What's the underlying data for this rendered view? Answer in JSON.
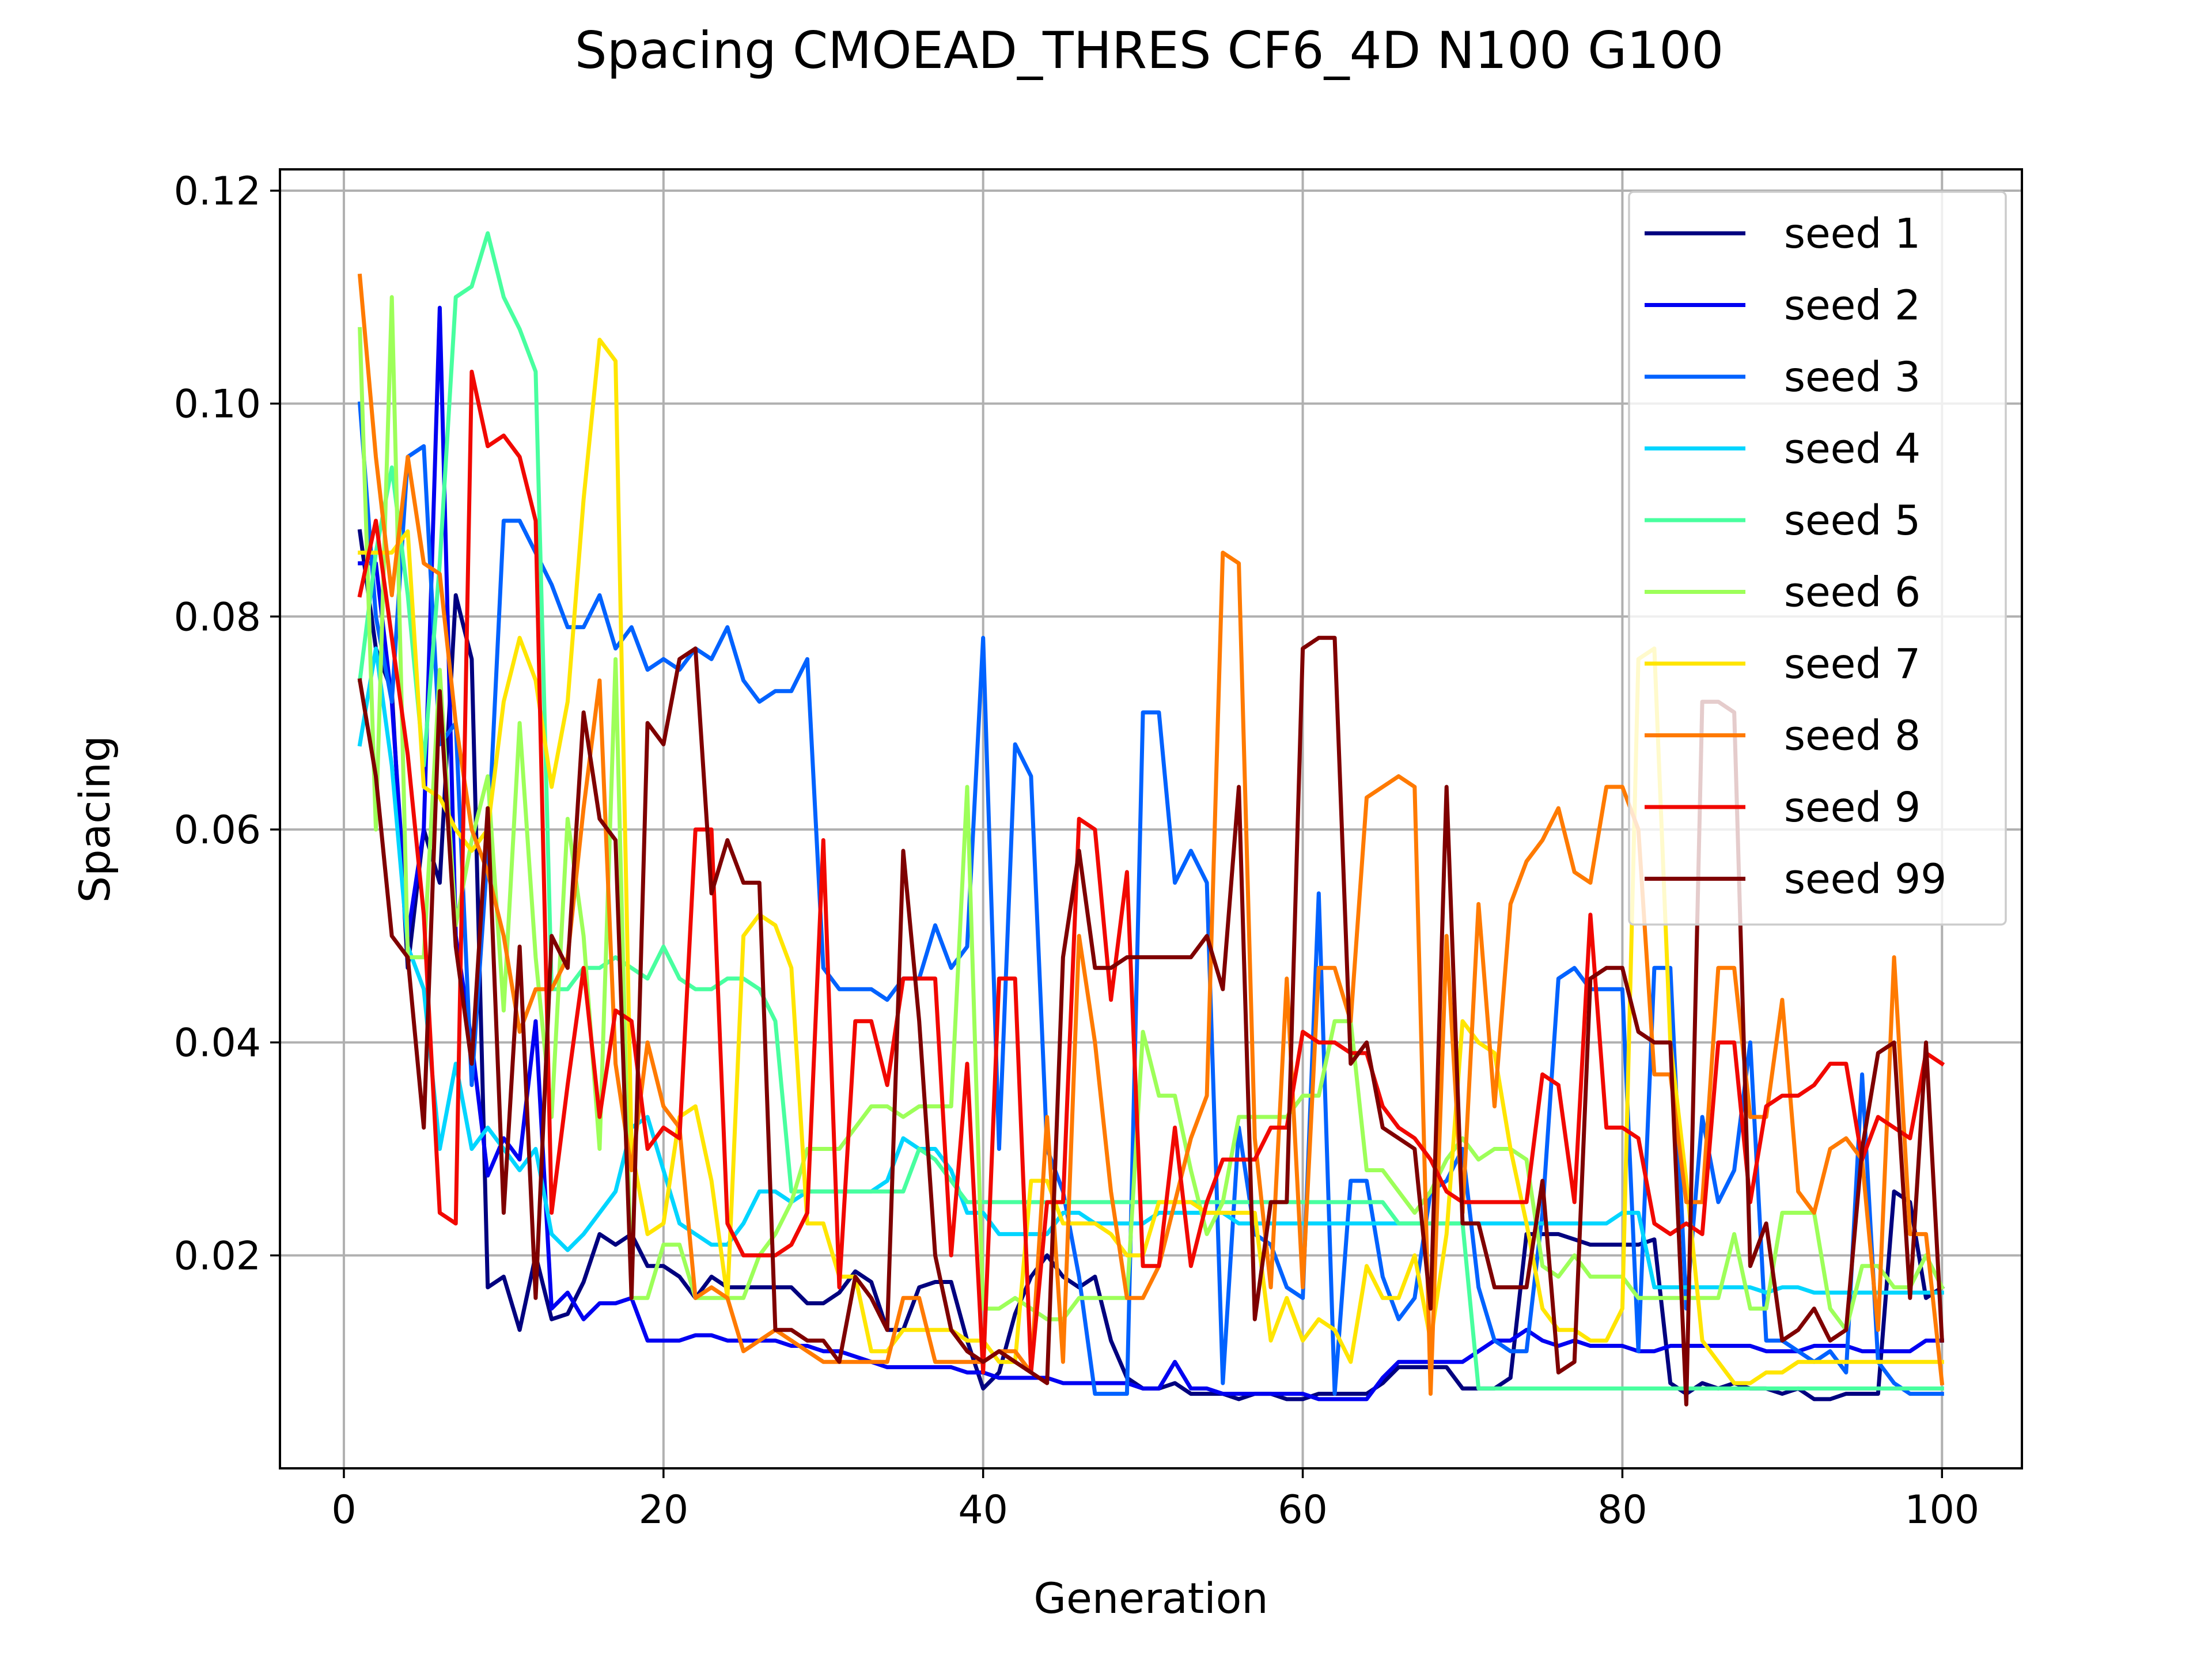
{
  "chart_data": {
    "type": "line",
    "title": "Spacing CMOEAD_THRES CF6_4D N100 G100",
    "xlabel": "Generation",
    "ylabel": "Spacing",
    "xlim": [
      -4,
      105
    ],
    "ylim": [
      0,
      0.122
    ],
    "xticks": [
      0,
      20,
      40,
      60,
      80,
      100
    ],
    "xtick_labels": [
      "0",
      "20",
      "40",
      "60",
      "80",
      "100"
    ],
    "yticks": [
      0.02,
      0.04,
      0.06,
      0.08,
      0.1,
      0.12
    ],
    "ytick_labels": [
      "0.02",
      "0.04",
      "0.06",
      "0.08",
      "0.10",
      "0.12"
    ],
    "grid": true,
    "legend_position": "top-right",
    "x": [
      1,
      2,
      3,
      4,
      5,
      6,
      7,
      8,
      9,
      10,
      11,
      12,
      13,
      14,
      15,
      16,
      17,
      18,
      19,
      20,
      21,
      22,
      23,
      24,
      25,
      26,
      27,
      28,
      29,
      30,
      31,
      32,
      33,
      34,
      35,
      36,
      37,
      38,
      39,
      40,
      41,
      42,
      43,
      44,
      45,
      46,
      47,
      48,
      49,
      50,
      51,
      52,
      53,
      54,
      55,
      56,
      57,
      58,
      59,
      60,
      61,
      62,
      63,
      64,
      65,
      66,
      67,
      68,
      69,
      70,
      71,
      72,
      73,
      74,
      75,
      76,
      77,
      78,
      79,
      80,
      81,
      82,
      83,
      84,
      85,
      86,
      87,
      88,
      89,
      90,
      91,
      92,
      93,
      94,
      95,
      96,
      97,
      98,
      99,
      100
    ],
    "series": [
      {
        "name": "seed 1",
        "color": "#00007f",
        "values": [
          0.088,
          0.077,
          0.073,
          0.047,
          0.06,
          0.055,
          0.082,
          0.076,
          0.017,
          0.018,
          0.013,
          0.02,
          0.014,
          0.0145,
          0.0175,
          0.022,
          0.021,
          0.022,
          0.019,
          0.019,
          0.018,
          0.016,
          0.018,
          0.017,
          0.017,
          0.017,
          0.017,
          0.017,
          0.0155,
          0.0155,
          0.0165,
          0.0185,
          0.0175,
          0.013,
          0.013,
          0.017,
          0.0175,
          0.0175,
          0.012,
          0.0075,
          0.009,
          0.0145,
          0.018,
          0.02,
          0.018,
          0.017,
          0.018,
          0.012,
          0.0085,
          0.0075,
          0.0075,
          0.008,
          0.007,
          0.007,
          0.007,
          0.0065,
          0.007,
          0.007,
          0.0065,
          0.0065,
          0.007,
          0.007,
          0.007,
          0.007,
          0.008,
          0.0095,
          0.0095,
          0.0095,
          0.0095,
          0.0075,
          0.0075,
          0.0075,
          0.0085,
          0.022,
          0.022,
          0.022,
          0.0215,
          0.021,
          0.021,
          0.021,
          0.021,
          0.0215,
          0.008,
          0.007,
          0.008,
          0.0075,
          0.008,
          0.0075,
          0.0075,
          0.007,
          0.0075,
          0.0065,
          0.0065,
          0.007,
          0.007,
          0.007,
          0.026,
          0.025,
          0.016,
          0.017
        ]
      },
      {
        "name": "seed 2",
        "color": "#0000f1",
        "values": [
          0.085,
          0.085,
          0.072,
          0.05,
          0.06,
          0.109,
          0.05,
          0.04,
          0.0275,
          0.031,
          0.029,
          0.042,
          0.015,
          0.0165,
          0.014,
          0.0155,
          0.0155,
          0.016,
          0.012,
          0.012,
          0.012,
          0.0125,
          0.0125,
          0.012,
          0.012,
          0.012,
          0.012,
          0.0115,
          0.0115,
          0.011,
          0.011,
          0.0105,
          0.01,
          0.0095,
          0.0095,
          0.0095,
          0.0095,
          0.0095,
          0.009,
          0.009,
          0.0085,
          0.0085,
          0.0085,
          0.0085,
          0.008,
          0.008,
          0.008,
          0.008,
          0.008,
          0.0075,
          0.0075,
          0.01,
          0.0075,
          0.0075,
          0.007,
          0.007,
          0.007,
          0.007,
          0.007,
          0.007,
          0.0065,
          0.0065,
          0.0065,
          0.0065,
          0.0085,
          0.01,
          0.01,
          0.01,
          0.01,
          0.01,
          0.011,
          0.012,
          0.012,
          0.013,
          0.012,
          0.0115,
          0.012,
          0.0115,
          0.0115,
          0.0115,
          0.011,
          0.011,
          0.0115,
          0.0115,
          0.0115,
          0.0115,
          0.0115,
          0.0115,
          0.011,
          0.011,
          0.011,
          0.0115,
          0.0115,
          0.0115,
          0.011,
          0.011,
          0.011,
          0.011,
          0.012,
          0.012
        ]
      },
      {
        "name": "seed 3",
        "color": "#0062ff",
        "values": [
          0.1,
          0.08,
          0.072,
          0.095,
          0.096,
          0.068,
          0.07,
          0.036,
          0.058,
          0.089,
          0.089,
          0.086,
          0.083,
          0.079,
          0.079,
          0.082,
          0.077,
          0.079,
          0.075,
          0.076,
          0.075,
          0.077,
          0.076,
          0.079,
          0.074,
          0.072,
          0.073,
          0.073,
          0.076,
          0.047,
          0.045,
          0.045,
          0.045,
          0.044,
          0.046,
          0.046,
          0.051,
          0.047,
          0.049,
          0.078,
          0.03,
          0.068,
          0.065,
          0.03,
          0.026,
          0.018,
          0.007,
          0.007,
          0.007,
          0.071,
          0.071,
          0.055,
          0.058,
          0.055,
          0.008,
          0.032,
          0.022,
          0.021,
          0.017,
          0.016,
          0.054,
          0.007,
          0.027,
          0.027,
          0.018,
          0.014,
          0.016,
          0.026,
          0.027,
          0.03,
          0.017,
          0.012,
          0.011,
          0.011,
          0.024,
          0.046,
          0.047,
          0.045,
          0.045,
          0.045,
          0.011,
          0.047,
          0.047,
          0.015,
          0.033,
          0.025,
          0.028,
          0.04,
          0.012,
          0.012,
          0.011,
          0.01,
          0.011,
          0.009,
          0.037,
          0.01,
          0.008,
          0.007,
          0.007,
          0.007
        ]
      },
      {
        "name": "seed 4",
        "color": "#00d5ff",
        "values": [
          0.068,
          0.077,
          0.066,
          0.049,
          0.045,
          0.03,
          0.038,
          0.03,
          0.032,
          0.03,
          0.028,
          0.03,
          0.022,
          0.0205,
          0.022,
          0.024,
          0.026,
          0.032,
          0.033,
          0.028,
          0.023,
          0.022,
          0.021,
          0.021,
          0.023,
          0.026,
          0.026,
          0.025,
          0.026,
          0.026,
          0.026,
          0.026,
          0.026,
          0.027,
          0.031,
          0.03,
          0.03,
          0.028,
          0.024,
          0.024,
          0.022,
          0.022,
          0.022,
          0.022,
          0.024,
          0.024,
          0.023,
          0.023,
          0.023,
          0.023,
          0.024,
          0.024,
          0.024,
          0.024,
          0.024,
          0.023,
          0.023,
          0.023,
          0.023,
          0.023,
          0.023,
          0.023,
          0.023,
          0.023,
          0.023,
          0.023,
          0.023,
          0.023,
          0.023,
          0.023,
          0.023,
          0.023,
          0.023,
          0.023,
          0.023,
          0.023,
          0.023,
          0.023,
          0.023,
          0.024,
          0.024,
          0.017,
          0.017,
          0.017,
          0.017,
          0.017,
          0.017,
          0.017,
          0.0165,
          0.017,
          0.017,
          0.0165,
          0.0165,
          0.0165,
          0.0165,
          0.0165,
          0.0165,
          0.0165,
          0.0165,
          0.0165
        ]
      },
      {
        "name": "seed 5",
        "color": "#48ff9f",
        "values": [
          0.074,
          0.086,
          0.094,
          0.082,
          0.066,
          0.085,
          0.11,
          0.111,
          0.116,
          0.11,
          0.107,
          0.103,
          0.045,
          0.045,
          0.047,
          0.047,
          0.048,
          0.047,
          0.046,
          0.049,
          0.046,
          0.045,
          0.045,
          0.046,
          0.046,
          0.045,
          0.042,
          0.026,
          0.026,
          0.026,
          0.026,
          0.026,
          0.026,
          0.026,
          0.026,
          0.03,
          0.029,
          0.027,
          0.025,
          0.025,
          0.025,
          0.025,
          0.025,
          0.025,
          0.025,
          0.025,
          0.025,
          0.025,
          0.025,
          0.025,
          0.025,
          0.025,
          0.025,
          0.025,
          0.025,
          0.025,
          0.025,
          0.025,
          0.025,
          0.025,
          0.025,
          0.025,
          0.025,
          0.025,
          0.025,
          0.023,
          0.023,
          0.023,
          0.023,
          0.023,
          0.0075,
          0.0075,
          0.0075,
          0.0075,
          0.0075,
          0.0075,
          0.0075,
          0.0075,
          0.0075,
          0.0075,
          0.0075,
          0.0075,
          0.0075,
          0.0075,
          0.0075,
          0.0075,
          0.0075,
          0.0075,
          0.0075,
          0.0075,
          0.0075,
          0.0075,
          0.0075,
          0.0075,
          0.0075,
          0.0075,
          0.0075,
          0.0075,
          0.0075,
          0.0075
        ]
      },
      {
        "name": "seed 6",
        "color": "#9dff59",
        "values": [
          0.107,
          0.06,
          0.11,
          0.048,
          0.048,
          0.075,
          0.051,
          0.059,
          0.065,
          0.043,
          0.07,
          0.048,
          0.033,
          0.061,
          0.05,
          0.03,
          0.076,
          0.016,
          0.016,
          0.021,
          0.021,
          0.016,
          0.016,
          0.016,
          0.016,
          0.02,
          0.022,
          0.025,
          0.03,
          0.03,
          0.03,
          0.032,
          0.034,
          0.034,
          0.033,
          0.034,
          0.034,
          0.034,
          0.064,
          0.015,
          0.015,
          0.016,
          0.015,
          0.014,
          0.014,
          0.016,
          0.016,
          0.016,
          0.016,
          0.041,
          0.035,
          0.035,
          0.028,
          0.022,
          0.025,
          0.033,
          0.033,
          0.033,
          0.033,
          0.035,
          0.035,
          0.042,
          0.042,
          0.028,
          0.028,
          0.026,
          0.024,
          0.026,
          0.029,
          0.031,
          0.029,
          0.03,
          0.03,
          0.029,
          0.019,
          0.018,
          0.02,
          0.018,
          0.018,
          0.018,
          0.016,
          0.016,
          0.016,
          0.016,
          0.016,
          0.016,
          0.022,
          0.015,
          0.015,
          0.024,
          0.024,
          0.024,
          0.015,
          0.013,
          0.019,
          0.019,
          0.017,
          0.017,
          0.02,
          0.017
        ]
      },
      {
        "name": "seed 7",
        "color": "#ffe500",
        "values": [
          0.086,
          0.086,
          0.086,
          0.088,
          0.064,
          0.063,
          0.06,
          0.058,
          0.06,
          0.072,
          0.078,
          0.074,
          0.064,
          0.072,
          0.091,
          0.106,
          0.104,
          0.03,
          0.022,
          0.023,
          0.033,
          0.034,
          0.027,
          0.016,
          0.05,
          0.052,
          0.051,
          0.047,
          0.023,
          0.023,
          0.018,
          0.018,
          0.011,
          0.011,
          0.013,
          0.013,
          0.013,
          0.013,
          0.012,
          0.012,
          0.01,
          0.01,
          0.027,
          0.027,
          0.023,
          0.023,
          0.023,
          0.022,
          0.02,
          0.02,
          0.025,
          0.025,
          0.025,
          0.024,
          0.024,
          0.024,
          0.024,
          0.012,
          0.016,
          0.012,
          0.014,
          0.013,
          0.01,
          0.019,
          0.016,
          0.016,
          0.02,
          0.012,
          0.022,
          0.042,
          0.04,
          0.039,
          0.03,
          0.023,
          0.015,
          0.013,
          0.013,
          0.012,
          0.012,
          0.015,
          0.076,
          0.077,
          0.04,
          0.027,
          0.012,
          0.01,
          0.008,
          0.008,
          0.009,
          0.009,
          0.01,
          0.01,
          0.01,
          0.01,
          0.01,
          0.01,
          0.01,
          0.01,
          0.01,
          0.01
        ]
      },
      {
        "name": "seed 8",
        "color": "#ff7a00",
        "values": [
          0.112,
          0.095,
          0.082,
          0.095,
          0.085,
          0.084,
          0.07,
          0.06,
          0.056,
          0.05,
          0.041,
          0.045,
          0.045,
          0.048,
          0.062,
          0.074,
          0.038,
          0.028,
          0.04,
          0.034,
          0.032,
          0.016,
          0.017,
          0.016,
          0.011,
          0.012,
          0.013,
          0.012,
          0.011,
          0.01,
          0.01,
          0.01,
          0.01,
          0.01,
          0.016,
          0.016,
          0.01,
          0.01,
          0.01,
          0.01,
          0.011,
          0.011,
          0.009,
          0.033,
          0.01,
          0.05,
          0.04,
          0.026,
          0.016,
          0.016,
          0.019,
          0.025,
          0.031,
          0.035,
          0.086,
          0.085,
          0.031,
          0.017,
          0.046,
          0.017,
          0.047,
          0.047,
          0.042,
          0.063,
          0.064,
          0.065,
          0.064,
          0.007,
          0.05,
          0.024,
          0.053,
          0.034,
          0.053,
          0.057,
          0.059,
          0.062,
          0.056,
          0.055,
          0.064,
          0.064,
          0.06,
          0.037,
          0.037,
          0.025,
          0.025,
          0.047,
          0.047,
          0.033,
          0.033,
          0.044,
          0.026,
          0.024,
          0.03,
          0.031,
          0.029,
          0.013,
          0.048,
          0.022,
          0.022,
          0.008
        ]
      },
      {
        "name": "seed 9",
        "color": "#f10800",
        "values": [
          0.082,
          0.089,
          0.078,
          0.067,
          0.052,
          0.024,
          0.023,
          0.103,
          0.096,
          0.097,
          0.095,
          0.089,
          0.024,
          0.036,
          0.047,
          0.033,
          0.043,
          0.042,
          0.03,
          0.032,
          0.031,
          0.06,
          0.06,
          0.023,
          0.02,
          0.02,
          0.02,
          0.021,
          0.024,
          0.059,
          0.017,
          0.042,
          0.042,
          0.036,
          0.046,
          0.046,
          0.046,
          0.02,
          0.038,
          0.009,
          0.046,
          0.046,
          0.009,
          0.025,
          0.025,
          0.061,
          0.06,
          0.044,
          0.056,
          0.019,
          0.019,
          0.032,
          0.019,
          0.025,
          0.029,
          0.029,
          0.029,
          0.032,
          0.032,
          0.041,
          0.04,
          0.04,
          0.039,
          0.039,
          0.034,
          0.032,
          0.031,
          0.029,
          0.026,
          0.025,
          0.025,
          0.025,
          0.025,
          0.025,
          0.037,
          0.036,
          0.025,
          0.052,
          0.032,
          0.032,
          0.031,
          0.023,
          0.022,
          0.023,
          0.022,
          0.04,
          0.04,
          0.025,
          0.034,
          0.035,
          0.035,
          0.036,
          0.038,
          0.038,
          0.029,
          0.033,
          0.032,
          0.031,
          0.039,
          0.038
        ]
      },
      {
        "name": "seed 99",
        "color": "#7f0000",
        "values": [
          0.074,
          0.065,
          0.05,
          0.048,
          0.032,
          0.073,
          0.049,
          0.038,
          0.062,
          0.024,
          0.049,
          0.016,
          0.05,
          0.047,
          0.071,
          0.061,
          0.059,
          0.016,
          0.07,
          0.068,
          0.076,
          0.077,
          0.054,
          0.059,
          0.055,
          0.055,
          0.013,
          0.013,
          0.012,
          0.012,
          0.01,
          0.018,
          0.016,
          0.013,
          0.058,
          0.042,
          0.02,
          0.013,
          0.011,
          0.01,
          0.011,
          0.01,
          0.009,
          0.008,
          0.048,
          0.058,
          0.047,
          0.047,
          0.048,
          0.048,
          0.048,
          0.048,
          0.048,
          0.05,
          0.045,
          0.064,
          0.014,
          0.025,
          0.025,
          0.077,
          0.078,
          0.078,
          0.038,
          0.04,
          0.032,
          0.031,
          0.03,
          0.015,
          0.064,
          0.023,
          0.023,
          0.017,
          0.017,
          0.017,
          0.027,
          0.009,
          0.01,
          0.046,
          0.047,
          0.047,
          0.041,
          0.04,
          0.04,
          0.006,
          0.072,
          0.072,
          0.071,
          0.019,
          0.023,
          0.012,
          0.013,
          0.015,
          0.012,
          0.013,
          0.03,
          0.039,
          0.04,
          0.016,
          0.04,
          0.012
        ]
      }
    ]
  }
}
